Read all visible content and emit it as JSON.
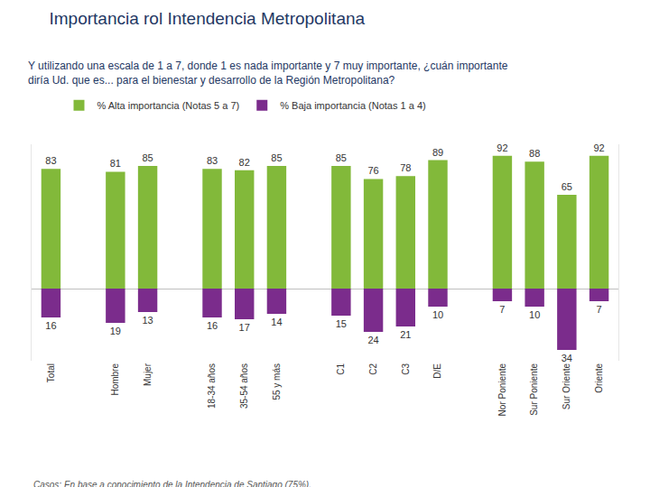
{
  "chart_data": {
    "type": "bar",
    "title": "Importancia rol Intendencia Metropolitana",
    "subtitle": "Y utilizando una escala de 1 a 7, donde 1 es nada importante y 7 muy importante, ¿cuán importante diría Ud. que es... para el bienestar y desarrollo de la Región Metropolitana?",
    "annotations": [
      "Casos: En base a conocimiento de la Intendencia de Santiago (75%)."
    ],
    "categories": [
      "Total",
      null,
      "Hombre",
      "Mujer",
      null,
      "18-34 años",
      "35-54 años",
      "55 y más",
      null,
      "C1",
      "C2",
      "C3",
      "D/E",
      null,
      "Nor Poniente",
      "Sur Poniente",
      "Sur Oriente",
      "Oriente"
    ],
    "series": [
      {
        "name": "% Alta importancia (Notas 5 a 7)",
        "color": "#82b93a",
        "values": [
          83,
          null,
          81,
          85,
          null,
          83,
          82,
          85,
          null,
          85,
          76,
          78,
          89,
          null,
          92,
          88,
          65,
          92
        ]
      },
      {
        "name": "% Baja importancia (Notas 1 a 4)",
        "color": "#7b2c8c",
        "axis": "y2",
        "values": [
          16,
          null,
          19,
          13,
          null,
          16,
          17,
          14,
          null,
          15,
          24,
          21,
          10,
          null,
          7,
          10,
          34,
          7
        ]
      }
    ],
    "ylim": [
      -50,
      100
    ],
    "y2lim": [
      40,
      -80
    ],
    "data_labels": true,
    "tick_labels": "x",
    "legend": "top-left"
  }
}
